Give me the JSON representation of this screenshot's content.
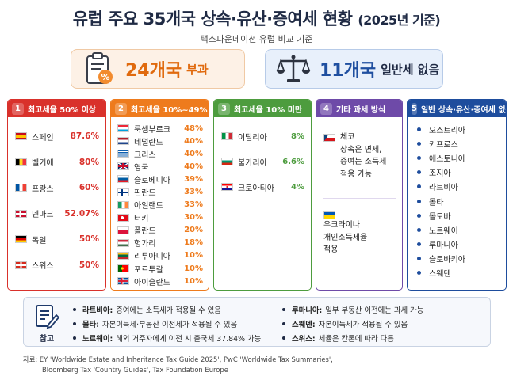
{
  "title": "유럽 주요 35개국 상속·유산·증여세 현황",
  "title_year": "(2025년 기준)",
  "subtitle": "택스파운데이션 유럽 비교 기준",
  "stats": {
    "levied_count": "24개국",
    "levied_label": "부과",
    "none_count": "11개국",
    "none_label": "일반세 없음"
  },
  "columns": {
    "c1": {
      "num": "1",
      "title": "최고세율 50% 이상",
      "rows": [
        {
          "flag": "spain",
          "name": "스페인",
          "pct": "87.6%"
        },
        {
          "flag": "belgium",
          "name": "벨기에",
          "pct": "80%"
        },
        {
          "flag": "france",
          "name": "프랑스",
          "pct": "60%"
        },
        {
          "flag": "denmark",
          "name": "덴마크",
          "pct": "52.07%"
        },
        {
          "flag": "germany",
          "name": "독일",
          "pct": "50%"
        },
        {
          "flag": "switzerland",
          "name": "스위스",
          "pct": "50%"
        }
      ]
    },
    "c2": {
      "num": "2",
      "title": "최고세율 10%~49%",
      "rows": [
        {
          "flag": "luxembourg",
          "name": "룩셈부르크",
          "pct": "48%"
        },
        {
          "flag": "netherlands",
          "name": "네덜란드",
          "pct": "40%"
        },
        {
          "flag": "greece",
          "name": "그리스",
          "pct": "40%"
        },
        {
          "flag": "uk",
          "name": "영국",
          "pct": "40%"
        },
        {
          "flag": "slovenia",
          "name": "슬로베니아",
          "pct": "39%"
        },
        {
          "flag": "finland",
          "name": "핀란드",
          "pct": "33%"
        },
        {
          "flag": "ireland",
          "name": "아일랜드",
          "pct": "33%"
        },
        {
          "flag": "turkey",
          "name": "터키",
          "pct": "30%"
        },
        {
          "flag": "poland",
          "name": "폴란드",
          "pct": "20%"
        },
        {
          "flag": "hungary",
          "name": "헝가리",
          "pct": "18%"
        },
        {
          "flag": "lithuania",
          "name": "리투아니아",
          "pct": "10%"
        },
        {
          "flag": "portugal",
          "name": "포르투갈",
          "pct": "10%"
        },
        {
          "flag": "iceland",
          "name": "아이슬란드",
          "pct": "10%"
        }
      ]
    },
    "c3": {
      "num": "3",
      "title": "최고세율 10% 미만",
      "rows": [
        {
          "flag": "italy",
          "name": "이탈리아",
          "pct": "8%"
        },
        {
          "flag": "bulgaria",
          "name": "불가리아",
          "pct": "6.6%"
        },
        {
          "flag": "croatia",
          "name": "크로아티아",
          "pct": "4%"
        }
      ]
    },
    "c4": {
      "num": "4",
      "title": "기타 과세 방식",
      "items": [
        {
          "flag": "czech",
          "name": "체코",
          "lines": [
            "상속은 면세,",
            "증여는 소득세",
            "적용 가능"
          ]
        },
        {
          "flag": "ukraine",
          "name": "우크라이나",
          "lines": [
            "개인소득세율",
            "적용"
          ]
        }
      ]
    },
    "c5": {
      "num": "5",
      "title": "일반 상속·유산·증여세 없음",
      "items": [
        "오스트리아",
        "키프로스",
        "에스토니아",
        "조지아",
        "라트비아",
        "몰타",
        "몰도바",
        "노르웨이",
        "루마니아",
        "슬로바키아",
        "스웨덴"
      ]
    }
  },
  "notes": {
    "label": "참고",
    "left": [
      {
        "k": "라트비아:",
        "v": "증여에는 소득세가 적용될 수 있음"
      },
      {
        "k": "몰타:",
        "v": "자본이득세·부동산 이전세가 적용될 수 있음"
      },
      {
        "k": "노르웨이:",
        "v": "해외 거주자에게 이전 시 출국세 37.84% 가능"
      }
    ],
    "right": [
      {
        "k": "루마니아:",
        "v": "일부 부동산 이전에는 과세 가능"
      },
      {
        "k": "스웨덴:",
        "v": "자본이득세가 적용될 수 있음"
      },
      {
        "k": "스위스:",
        "v": "세율은 칸톤에 따라 다름"
      }
    ]
  },
  "source": {
    "line1": "자료: EY 'Worldwide Estate and Inheritance Tax Guide 2025', PwC 'Worldwide Tax Summaries',",
    "line2": "Bloomberg Tax 'Country Guides', Tax Foundation Europe"
  },
  "colors": {
    "c1": "#d9312b",
    "c2": "#ee7b1d",
    "c3": "#4d9c3e",
    "c4": "#6e4aa8",
    "c5": "#1e4d9d"
  }
}
